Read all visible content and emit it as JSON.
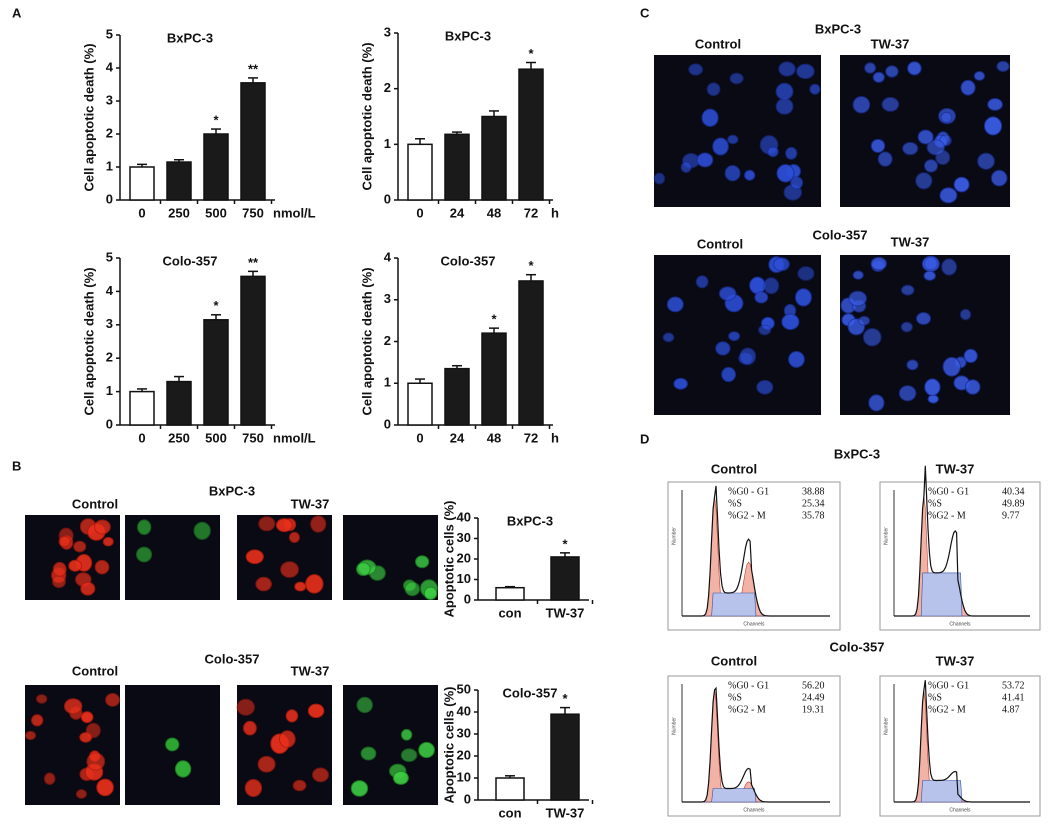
{
  "panel_labels": [
    "A",
    "B",
    "C",
    "D"
  ],
  "chart_data": [
    {
      "type": "bar",
      "title": "BxPC-3",
      "y_label": "Cell apoptotic death (%)",
      "x_unit": "nmol/L",
      "categories": [
        "0",
        "250",
        "500",
        "750"
      ],
      "values": [
        1.0,
        1.15,
        2.0,
        3.55
      ],
      "errors": [
        0.08,
        0.07,
        0.15,
        0.15
      ],
      "bar_labels": [
        null,
        null,
        "*",
        "**"
      ],
      "colors": [
        "#ffffff",
        "#1a1a1a",
        "#1a1a1a",
        "#1a1a1a"
      ],
      "ylim": [
        0,
        5
      ],
      "yticks": [
        0,
        1,
        2,
        3,
        4,
        5
      ]
    },
    {
      "type": "bar",
      "title": "BxPC-3",
      "y_label": "Cell apoptotic death (%)",
      "x_unit": "h",
      "categories": [
        "0",
        "24",
        "48",
        "72"
      ],
      "values": [
        1.0,
        1.18,
        1.5,
        2.35
      ],
      "errors": [
        0.1,
        0.04,
        0.1,
        0.12
      ],
      "bar_labels": [
        null,
        null,
        null,
        "*"
      ],
      "colors": [
        "#ffffff",
        "#1a1a1a",
        "#1a1a1a",
        "#1a1a1a"
      ],
      "ylim": [
        0,
        3
      ],
      "yticks": [
        0,
        1,
        2,
        3
      ]
    },
    {
      "type": "bar",
      "title": "Colo-357",
      "y_label": "Cell apoptotic death (%)",
      "x_unit": "nmol/L",
      "categories": [
        "0",
        "250",
        "500",
        "750"
      ],
      "values": [
        1.0,
        1.3,
        3.15,
        4.45
      ],
      "errors": [
        0.08,
        0.15,
        0.15,
        0.15
      ],
      "bar_labels": [
        null,
        null,
        "*",
        "**"
      ],
      "colors": [
        "#ffffff",
        "#1a1a1a",
        "#1a1a1a",
        "#1a1a1a"
      ],
      "ylim": [
        0,
        5
      ],
      "yticks": [
        0,
        1,
        2,
        3,
        4,
        5
      ]
    },
    {
      "type": "bar",
      "title": "Colo-357",
      "y_label": "Cell apoptotic death (%)",
      "x_unit": "h",
      "categories": [
        "0",
        "24",
        "48",
        "72"
      ],
      "values": [
        1.0,
        1.35,
        2.2,
        3.45
      ],
      "errors": [
        0.1,
        0.07,
        0.12,
        0.15
      ],
      "bar_labels": [
        null,
        null,
        "*",
        "*"
      ],
      "colors": [
        "#ffffff",
        "#1a1a1a",
        "#1a1a1a",
        "#1a1a1a"
      ],
      "ylim": [
        0,
        4
      ],
      "yticks": [
        0,
        1,
        2,
        3,
        4
      ]
    },
    {
      "type": "bar",
      "title": "BxPC-3",
      "y_label": "Apoptotic cells (%)",
      "categories": [
        "con",
        "TW-37"
      ],
      "values": [
        6,
        21
      ],
      "errors": [
        0.5,
        2
      ],
      "bar_labels": [
        null,
        "*"
      ],
      "colors": [
        "#ffffff",
        "#1a1a1a"
      ],
      "ylim": [
        0,
        40
      ],
      "yticks": [
        0,
        10,
        20,
        30,
        40
      ]
    },
    {
      "type": "bar",
      "title": "Colo-357",
      "y_label": "Apoptotic cells (%)",
      "categories": [
        "con",
        "TW-37"
      ],
      "values": [
        10,
        39
      ],
      "errors": [
        1,
        3
      ],
      "bar_labels": [
        null,
        "*"
      ],
      "colors": [
        "#ffffff",
        "#1a1a1a"
      ],
      "ylim": [
        0,
        50
      ],
      "yticks": [
        0,
        10,
        20,
        30,
        40,
        50
      ]
    }
  ],
  "panel_b": {
    "rows": [
      {
        "title": "BxPC-3",
        "conditions": [
          "Control",
          "TW-37"
        ]
      },
      {
        "title": "Colo-357",
        "conditions": [
          "Control",
          "TW-37"
        ]
      }
    ]
  },
  "panel_c": {
    "rows": [
      {
        "title": "BxPC-3",
        "conditions": [
          "Control",
          "TW-37"
        ]
      },
      {
        "title": "Colo-357",
        "conditions": [
          "Control",
          "TW-37"
        ]
      }
    ]
  },
  "panel_d": {
    "rows": [
      {
        "title": "BxPC-3",
        "histograms": [
          {
            "condition": "Control",
            "y_label": "Number",
            "x_label": "Channels",
            "stats": [
              {
                "label": "%G0 - G1",
                "value": "38.88"
              },
              {
                "label": "%S",
                "value": "25.34"
              },
              {
                "label": "%G2 - M",
                "value": "35.78"
              }
            ]
          },
          {
            "condition": "TW-37",
            "y_label": "Number",
            "x_label": "Channels",
            "stats": [
              {
                "label": "%G0 - G1",
                "value": "40.34"
              },
              {
                "label": "%S",
                "value": "49.89"
              },
              {
                "label": "%G2 - M",
                "value": "9.77"
              }
            ]
          }
        ]
      },
      {
        "title": "Colo-357",
        "histograms": [
          {
            "condition": "Control",
            "y_label": "Number",
            "x_label": "Channels",
            "stats": [
              {
                "label": "%G0 - G1",
                "value": "56.20"
              },
              {
                "label": "%S",
                "value": "24.49"
              },
              {
                "label": "%G2 - M",
                "value": "19.31"
              }
            ]
          },
          {
            "condition": "TW-37",
            "y_label": "Number",
            "x_label": "Channels",
            "stats": [
              {
                "label": "%G0 - G1",
                "value": "53.72"
              },
              {
                "label": "%S",
                "value": "41.41"
              },
              {
                "label": "%G2 - M",
                "value": "4.87"
              }
            ]
          }
        ]
      }
    ]
  }
}
